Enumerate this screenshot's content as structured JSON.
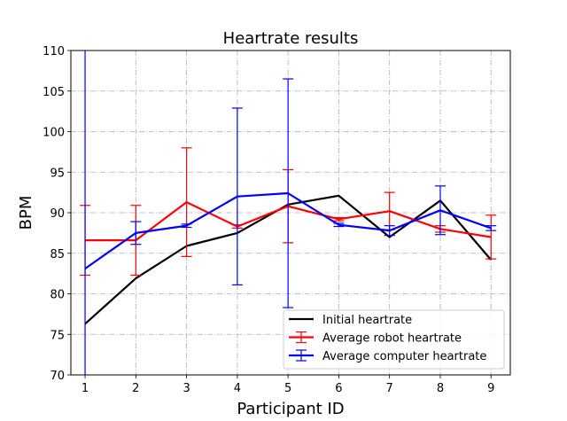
{
  "chart_data": {
    "type": "line",
    "title": "Heartrate results",
    "xlabel": "Participant ID",
    "ylabel": "BPM",
    "xlim": [
      0.72,
      9.38
    ],
    "ylim": [
      70,
      110
    ],
    "x_ticks": [
      1,
      2,
      3,
      4,
      5,
      6,
      7,
      8,
      9
    ],
    "y_ticks": [
      70,
      75,
      80,
      85,
      90,
      95,
      100,
      105,
      110
    ],
    "grid": true,
    "grid_style": "dash-dot",
    "legend_position": "lower-right",
    "x": [
      1,
      2,
      3,
      4,
      5,
      6,
      7,
      8,
      9
    ],
    "series": [
      {
        "name": "Initial heartrate",
        "color": "#000000",
        "values": [
          76.3,
          81.9,
          85.9,
          87.5,
          91.0,
          92.1,
          87.0,
          91.5,
          84.2
        ],
        "error": null
      },
      {
        "name": "Average robot heartrate",
        "color": "#ff0000",
        "values": [
          86.6,
          86.6,
          91.3,
          88.3,
          90.8,
          89.2,
          90.2,
          88.0,
          87.0
        ],
        "error": [
          4.3,
          4.3,
          6.7,
          0.2,
          4.5,
          0.2,
          2.3,
          0.4,
          2.7
        ]
      },
      {
        "name": "Average computer heartrate",
        "color": "#0000ff",
        "values": [
          83.1,
          87.5,
          88.4,
          92.0,
          92.4,
          88.5,
          87.8,
          90.3,
          88.1
        ],
        "error": [
          27.0,
          1.4,
          0.2,
          10.9,
          14.1,
          0.2,
          0.6,
          3.0,
          0.3
        ]
      }
    ]
  }
}
